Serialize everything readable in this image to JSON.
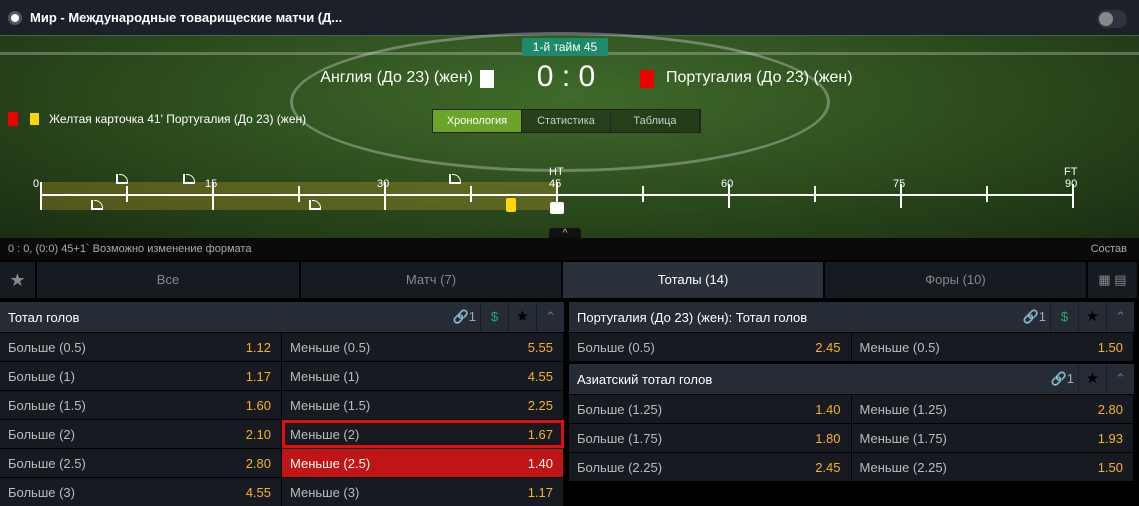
{
  "header": {
    "title": "Мир - Международные товарищеские матчи (Д..."
  },
  "match": {
    "period": "1-й тайм 45",
    "home": "Англия (До 23) (жен)",
    "away": "Португалия (До 23) (жен)",
    "home_score": "0",
    "separator": ":",
    "away_score": "0",
    "home_color": "#ffffff",
    "away_color": "#e00000"
  },
  "last_event": "Желтая карточка 41' Португалия (До 23) (жен)",
  "view_tabs": [
    {
      "label": "Хронология",
      "active": true
    },
    {
      "label": "Статистика"
    },
    {
      "label": "Таблица"
    }
  ],
  "timeline": {
    "labels": [
      "0",
      "15",
      "30",
      "45",
      "60",
      "75",
      "90"
    ],
    "ht": "HT",
    "ft": "FT",
    "current_minute": 45,
    "corners_top": [
      6.5,
      12.4,
      35.6
    ],
    "corners_bottom": [
      4.4,
      23.4
    ],
    "yellow_cards": [
      41
    ]
  },
  "info": {
    "text": "0 : 0, (0:0) 45+1` Возможно изменение формата",
    "lineup": "Состав"
  },
  "tabs": [
    {
      "label": "Все"
    },
    {
      "label": "Матч (7)"
    },
    {
      "label": "Тоталы (14)",
      "active": true
    },
    {
      "label": "Форы (10)"
    }
  ],
  "markets": [
    {
      "title": "Тотал голов",
      "links": "1",
      "rows": [
        [
          {
            "l": "Больше (0.5)",
            "o": "1.12"
          },
          {
            "l": "Меньше (0.5)",
            "o": "5.55"
          }
        ],
        [
          {
            "l": "Больше (1)",
            "o": "1.17"
          },
          {
            "l": "Меньше (1)",
            "o": "4.55"
          }
        ],
        [
          {
            "l": "Больше (1.5)",
            "o": "1.60"
          },
          {
            "l": "Меньше (1.5)",
            "o": "2.25"
          }
        ],
        [
          {
            "l": "Больше (2)",
            "o": "2.10"
          },
          {
            "l": "Меньше (2)",
            "o": "1.67",
            "highlighted": true
          }
        ],
        [
          {
            "l": "Больше (2.5)",
            "o": "2.80"
          },
          {
            "l": "Меньше (2.5)",
            "o": "1.40",
            "selected": true
          }
        ],
        [
          {
            "l": "Больше (3)",
            "o": "4.55"
          },
          {
            "l": "Меньше (3)",
            "o": "1.17"
          }
        ]
      ]
    },
    {
      "title": "Португалия (До 23) (жен): Тотал голов",
      "links": "1",
      "rows": [
        [
          {
            "l": "Больше (0.5)",
            "o": "2.45"
          },
          {
            "l": "Меньше (0.5)",
            "o": "1.50"
          }
        ]
      ]
    },
    {
      "title": "Азиатский тотал голов",
      "links": "1",
      "rows": [
        [
          {
            "l": "Больше (1.25)",
            "o": "1.40"
          },
          {
            "l": "Меньше (1.25)",
            "o": "2.80"
          }
        ],
        [
          {
            "l": "Больше (1.75)",
            "o": "1.80"
          },
          {
            "l": "Меньше (1.75)",
            "o": "1.93"
          }
        ],
        [
          {
            "l": "Больше (2.25)",
            "o": "2.45"
          },
          {
            "l": "Меньше (2.25)",
            "o": "1.50"
          }
        ]
      ]
    }
  ],
  "colors": {
    "accent": "#6aa52a",
    "odds": "#f5b12a",
    "selected": "#c11414",
    "period": "#1f8a6a"
  }
}
